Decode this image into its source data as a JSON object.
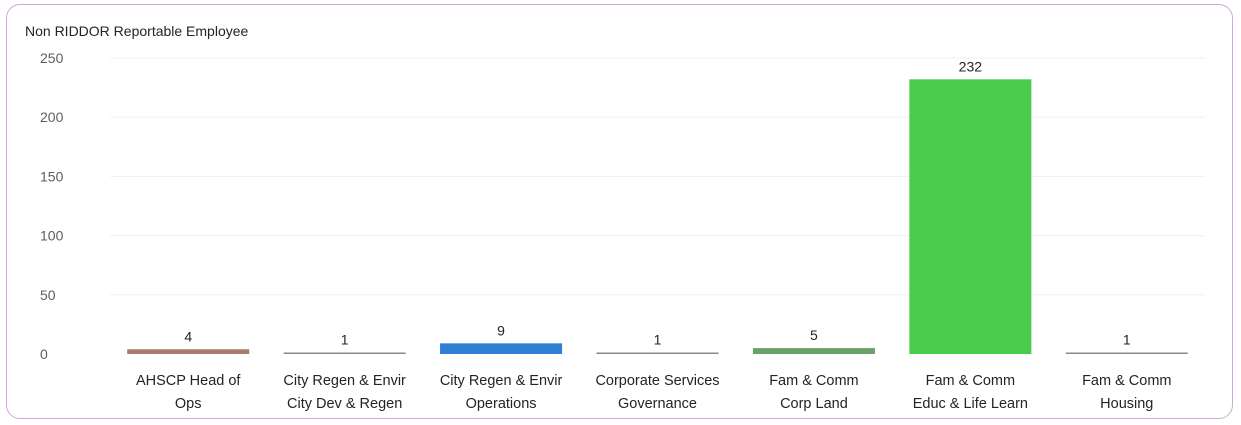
{
  "chart_data": {
    "type": "bar",
    "title": "Non RIDDOR Reportable Employee",
    "categories": [
      [
        "AHSCP Head of",
        "Ops"
      ],
      [
        "City Regen & Envir",
        "City Dev & Regen"
      ],
      [
        "City Regen & Envir",
        "Operations"
      ],
      [
        "Corporate Services",
        "Governance"
      ],
      [
        "Fam & Comm",
        "Corp Land"
      ],
      [
        "Fam & Comm",
        "Educ & Life Learn"
      ],
      [
        "Fam & Comm",
        "Housing"
      ]
    ],
    "values": [
      4,
      1,
      9,
      1,
      5,
      232,
      1
    ],
    "colors": [
      "#a87a6a",
      "#8a8a8a",
      "#2f7fd4",
      "#8a8a8a",
      "#6aa06a",
      "#4ccc4c",
      "#8a8a8a"
    ],
    "ylim": [
      0,
      250
    ],
    "yticks": [
      0,
      50,
      100,
      150,
      200,
      250
    ],
    "grid": true,
    "xlabel": "",
    "ylabel": ""
  }
}
